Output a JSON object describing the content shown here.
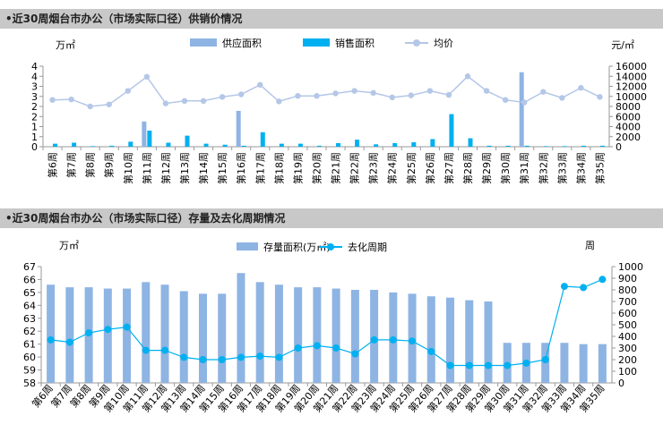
{
  "chart_data": [
    {
      "type": "bar+line",
      "title": "•近30周烟台市办公（市场实际口径）供销价情况",
      "left_unit": "万㎡",
      "right_unit": "元/㎡",
      "left_ylim": [
        0,
        4
      ],
      "left_ticks": [
        "0",
        "1",
        "1",
        "2",
        "2",
        "3",
        "3",
        "4",
        "4"
      ],
      "right_ylim": [
        0,
        16000
      ],
      "right_ticks": [
        "0",
        "2000",
        "4000",
        "6000",
        "8000",
        "10000",
        "12000",
        "14000",
        "16000"
      ],
      "legend_position": "top",
      "grid": false,
      "categories": [
        "第6周",
        "第7周",
        "第8周",
        "第9周",
        "第10周",
        "第11周",
        "第12周",
        "第13周",
        "第14周",
        "第15周",
        "第16周",
        "第17周",
        "第18周",
        "第19周",
        "第20周",
        "第21周",
        "第22周",
        "第23周",
        "第24周",
        "第25周",
        "第26周",
        "第27周",
        "第28周",
        "第29周",
        "第30周",
        "第31周",
        "第32周",
        "第33周",
        "第34周",
        "第35周"
      ],
      "series": [
        {
          "name": "供应面积",
          "kind": "bar",
          "color": "#8eb4e3",
          "values": [
            0,
            0,
            0,
            0,
            0,
            1.25,
            0,
            0,
            0,
            0,
            1.78,
            0,
            0,
            0,
            0,
            0,
            0,
            0,
            0,
            0,
            0,
            0,
            0,
            0,
            0,
            3.7,
            0,
            0,
            0,
            0
          ]
        },
        {
          "name": "销售面积",
          "kind": "bar",
          "color": "#00b0f0",
          "values": [
            0.15,
            0.2,
            0.03,
            0.05,
            0.25,
            0.8,
            0.2,
            0.55,
            0.15,
            0.1,
            0.05,
            0.72,
            0.15,
            0.15,
            0.05,
            0.18,
            0.35,
            0.12,
            0.18,
            0.22,
            0.38,
            1.62,
            0.42,
            0.05,
            0.05,
            0.05,
            0.03,
            0.03,
            0.05,
            0.05
          ]
        },
        {
          "name": "均价",
          "kind": "line",
          "axis": "right",
          "color": "#b4c7e7",
          "values": [
            9300,
            9400,
            8000,
            8400,
            11100,
            13900,
            8600,
            9100,
            9100,
            9900,
            10400,
            12300,
            9000,
            10100,
            10100,
            10600,
            11100,
            10700,
            9800,
            10200,
            11100,
            10300,
            14000,
            11100,
            9300,
            8800,
            10900,
            9700,
            11700,
            9900
          ]
        }
      ]
    },
    {
      "type": "bar+line",
      "title": "•近30周烟台市办公（市场实际口径）存量及去化周期情况",
      "left_unit": "万㎡",
      "right_unit": "周",
      "left_ylim": [
        58,
        67
      ],
      "left_ticks": [
        "58",
        "59",
        "60",
        "61",
        "62",
        "63",
        "64",
        "65",
        "66",
        "67"
      ],
      "right_ylim": [
        0,
        1000
      ],
      "right_ticks": [
        "0",
        "100",
        "200",
        "300",
        "400",
        "500",
        "600",
        "700",
        "800",
        "900",
        "1000"
      ],
      "legend_position": "top",
      "grid": false,
      "categories": [
        "第6周",
        "第7周",
        "第8周",
        "第9周",
        "第10周",
        "第11周",
        "第12周",
        "第13周",
        "第14周",
        "第15周",
        "第16周",
        "第17周",
        "第18周",
        "第19周",
        "第20周",
        "第21周",
        "第22周",
        "第23周",
        "第24周",
        "第25周",
        "第26周",
        "第27周",
        "第28周",
        "第29周",
        "第30周",
        "第31周",
        "第32周",
        "第33周",
        "第34周",
        "第35周"
      ],
      "series": [
        {
          "name": "存量面积(万㎡)",
          "kind": "bar",
          "color": "#8eb4e3",
          "values": [
            65.6,
            65.4,
            65.4,
            65.3,
            65.3,
            65.8,
            65.6,
            65.1,
            64.9,
            64.9,
            66.5,
            65.8,
            65.6,
            65.4,
            65.4,
            65.3,
            65.2,
            65.2,
            65.0,
            64.9,
            64.7,
            64.6,
            64.4,
            64.3,
            61.1,
            61.1,
            61.1,
            61.1,
            61.0,
            61.0
          ]
        },
        {
          "name": "去化周期",
          "kind": "line",
          "axis": "right",
          "color": "#00b0f0",
          "values": [
            370,
            350,
            430,
            460,
            480,
            280,
            280,
            220,
            200,
            200,
            220,
            230,
            220,
            300,
            320,
            300,
            250,
            370,
            370,
            360,
            270,
            150,
            150,
            150,
            150,
            170,
            200,
            830,
            820,
            890
          ]
        }
      ]
    }
  ]
}
